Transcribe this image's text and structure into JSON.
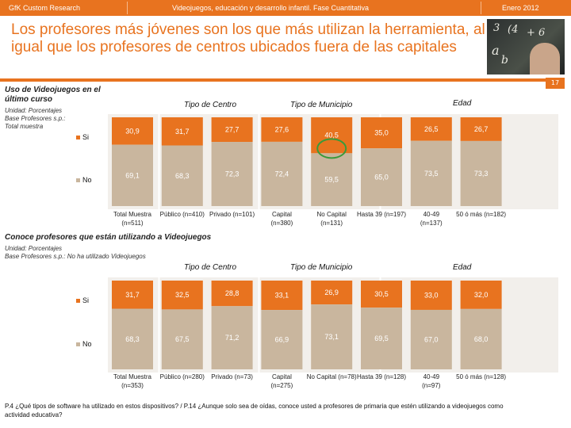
{
  "header": {
    "left": "GfK Custom Research",
    "center": "Videojuegos, educación y desarrollo infantil. Fase Cuantitativa",
    "right": "Enero 2012"
  },
  "title": "Los profesores más jóvenes son los que más utilizan la herramienta, al igual que los profesores de centros ubicados fuera de las capitales",
  "page_number": "17",
  "photo_text": [
    "3",
    "(4",
    "+ 6",
    "a",
    "b"
  ],
  "colors": {
    "orange": "#e8731f",
    "si": "#e8731f",
    "no": "#c9b69e",
    "panel": "#f2efeb",
    "circle": "#3a9a3a"
  },
  "chart_data": [
    {
      "type": "bar",
      "stacked": true,
      "orientation": "vertical",
      "title": "Uso de Videojuegos en el último curso",
      "notes": [
        "Unidad: Porcentajes",
        "Base Profesores s.p.:",
        "Total muestra"
      ],
      "groups": [
        "Tipo de Centro",
        "Tipo de Municipio",
        "Edad"
      ],
      "categories": [
        "Total Muestra (n=511)",
        "Público (n=410)",
        "Privado (n=101)",
        "Capital (n=380)",
        "No Capital (n=131)",
        "Hasta 39 (n=197)",
        "40-49 (n=137)",
        "50 ó más (n=182)"
      ],
      "ylim": [
        0,
        100
      ],
      "series": [
        {
          "name": "Si",
          "values": [
            30.9,
            31.7,
            27.7,
            27.6,
            40.5,
            35.0,
            26.5,
            26.7
          ]
        },
        {
          "name": "No",
          "values": [
            69.1,
            68.3,
            72.3,
            72.4,
            59.5,
            65.0,
            73.5,
            73.3
          ]
        }
      ],
      "highlight": "No Capital (n=131)"
    },
    {
      "type": "bar",
      "stacked": true,
      "orientation": "vertical",
      "title": "Conoce profesores que están utilizando a Videojuegos",
      "notes": [
        "Unidad: Porcentajes",
        "Base Profesores s.p.: No ha utilizado Videojuegos"
      ],
      "groups": [
        "Tipo de Centro",
        "Tipo de Municipio",
        "Edad"
      ],
      "categories": [
        "Total Muestra (n=353)",
        "Público (n=280)",
        "Privado (n=73)",
        "Capital (n=275)",
        "No Capital (n=78)",
        "Hasta 39 (n=128)",
        "40-49 (n=97)",
        "50 ó más (n=128)"
      ],
      "ylim": [
        0,
        100
      ],
      "series": [
        {
          "name": "Si",
          "values": [
            31.7,
            32.5,
            28.8,
            33.1,
            26.9,
            30.5,
            33.0,
            32.0
          ]
        },
        {
          "name": "No",
          "values": [
            68.3,
            67.5,
            71.2,
            66.9,
            73.1,
            69.5,
            67.0,
            68.0
          ]
        }
      ]
    }
  ],
  "footnote": "P.4 ¿Qué tipos de software ha utilizado en estos dispositivos? / P.14 ¿Aunque solo sea de oídas, conoce usted a profesores de primaria que estén utilizando a videojuegos como actividad educativa?"
}
